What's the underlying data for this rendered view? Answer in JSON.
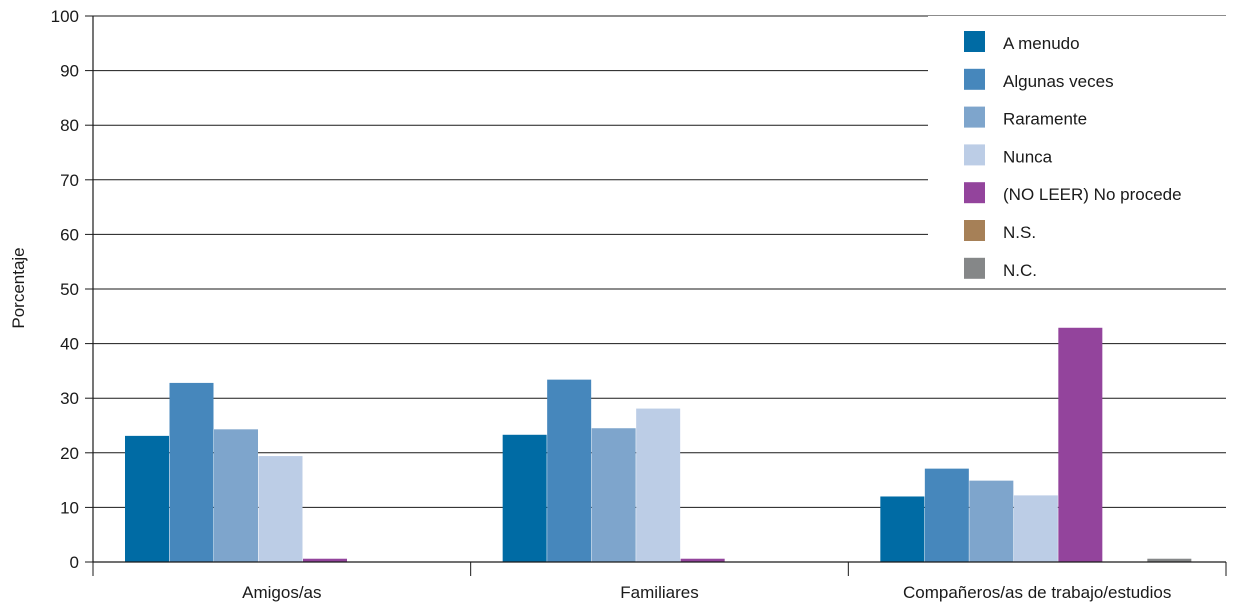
{
  "chart_data": {
    "type": "bar",
    "ylabel": "Porcentaje",
    "ylim": [
      0,
      100
    ],
    "yticks": [
      0,
      10,
      20,
      30,
      40,
      50,
      60,
      70,
      80,
      90,
      100
    ],
    "grid": "horizontal",
    "legend_position": "top-right",
    "categories": [
      "Amigos/as",
      "Familiares",
      "Compañeros/as de trabajo/estudios"
    ],
    "series": [
      {
        "name": "A menudo",
        "color": "#006ba4",
        "values": [
          23.1,
          23.3,
          12.0
        ]
      },
      {
        "name": "Algunas veces",
        "color": "#4687bc",
        "values": [
          32.8,
          33.4,
          17.1
        ]
      },
      {
        "name": "Raramente",
        "color": "#7ea5cc",
        "values": [
          24.3,
          24.5,
          14.9
        ]
      },
      {
        "name": "Nunca",
        "color": "#bccde6",
        "values": [
          19.4,
          28.1,
          12.2
        ]
      },
      {
        "name": "(NO LEER) No procede",
        "color": "#93449c",
        "values": [
          0.6,
          0.6,
          42.9
        ]
      },
      {
        "name": "N.S.",
        "color": "#a68057",
        "values": [
          0,
          0,
          0
        ]
      },
      {
        "name": "N.C.",
        "color": "#858788",
        "values": [
          0,
          0,
          0.6
        ]
      }
    ]
  }
}
